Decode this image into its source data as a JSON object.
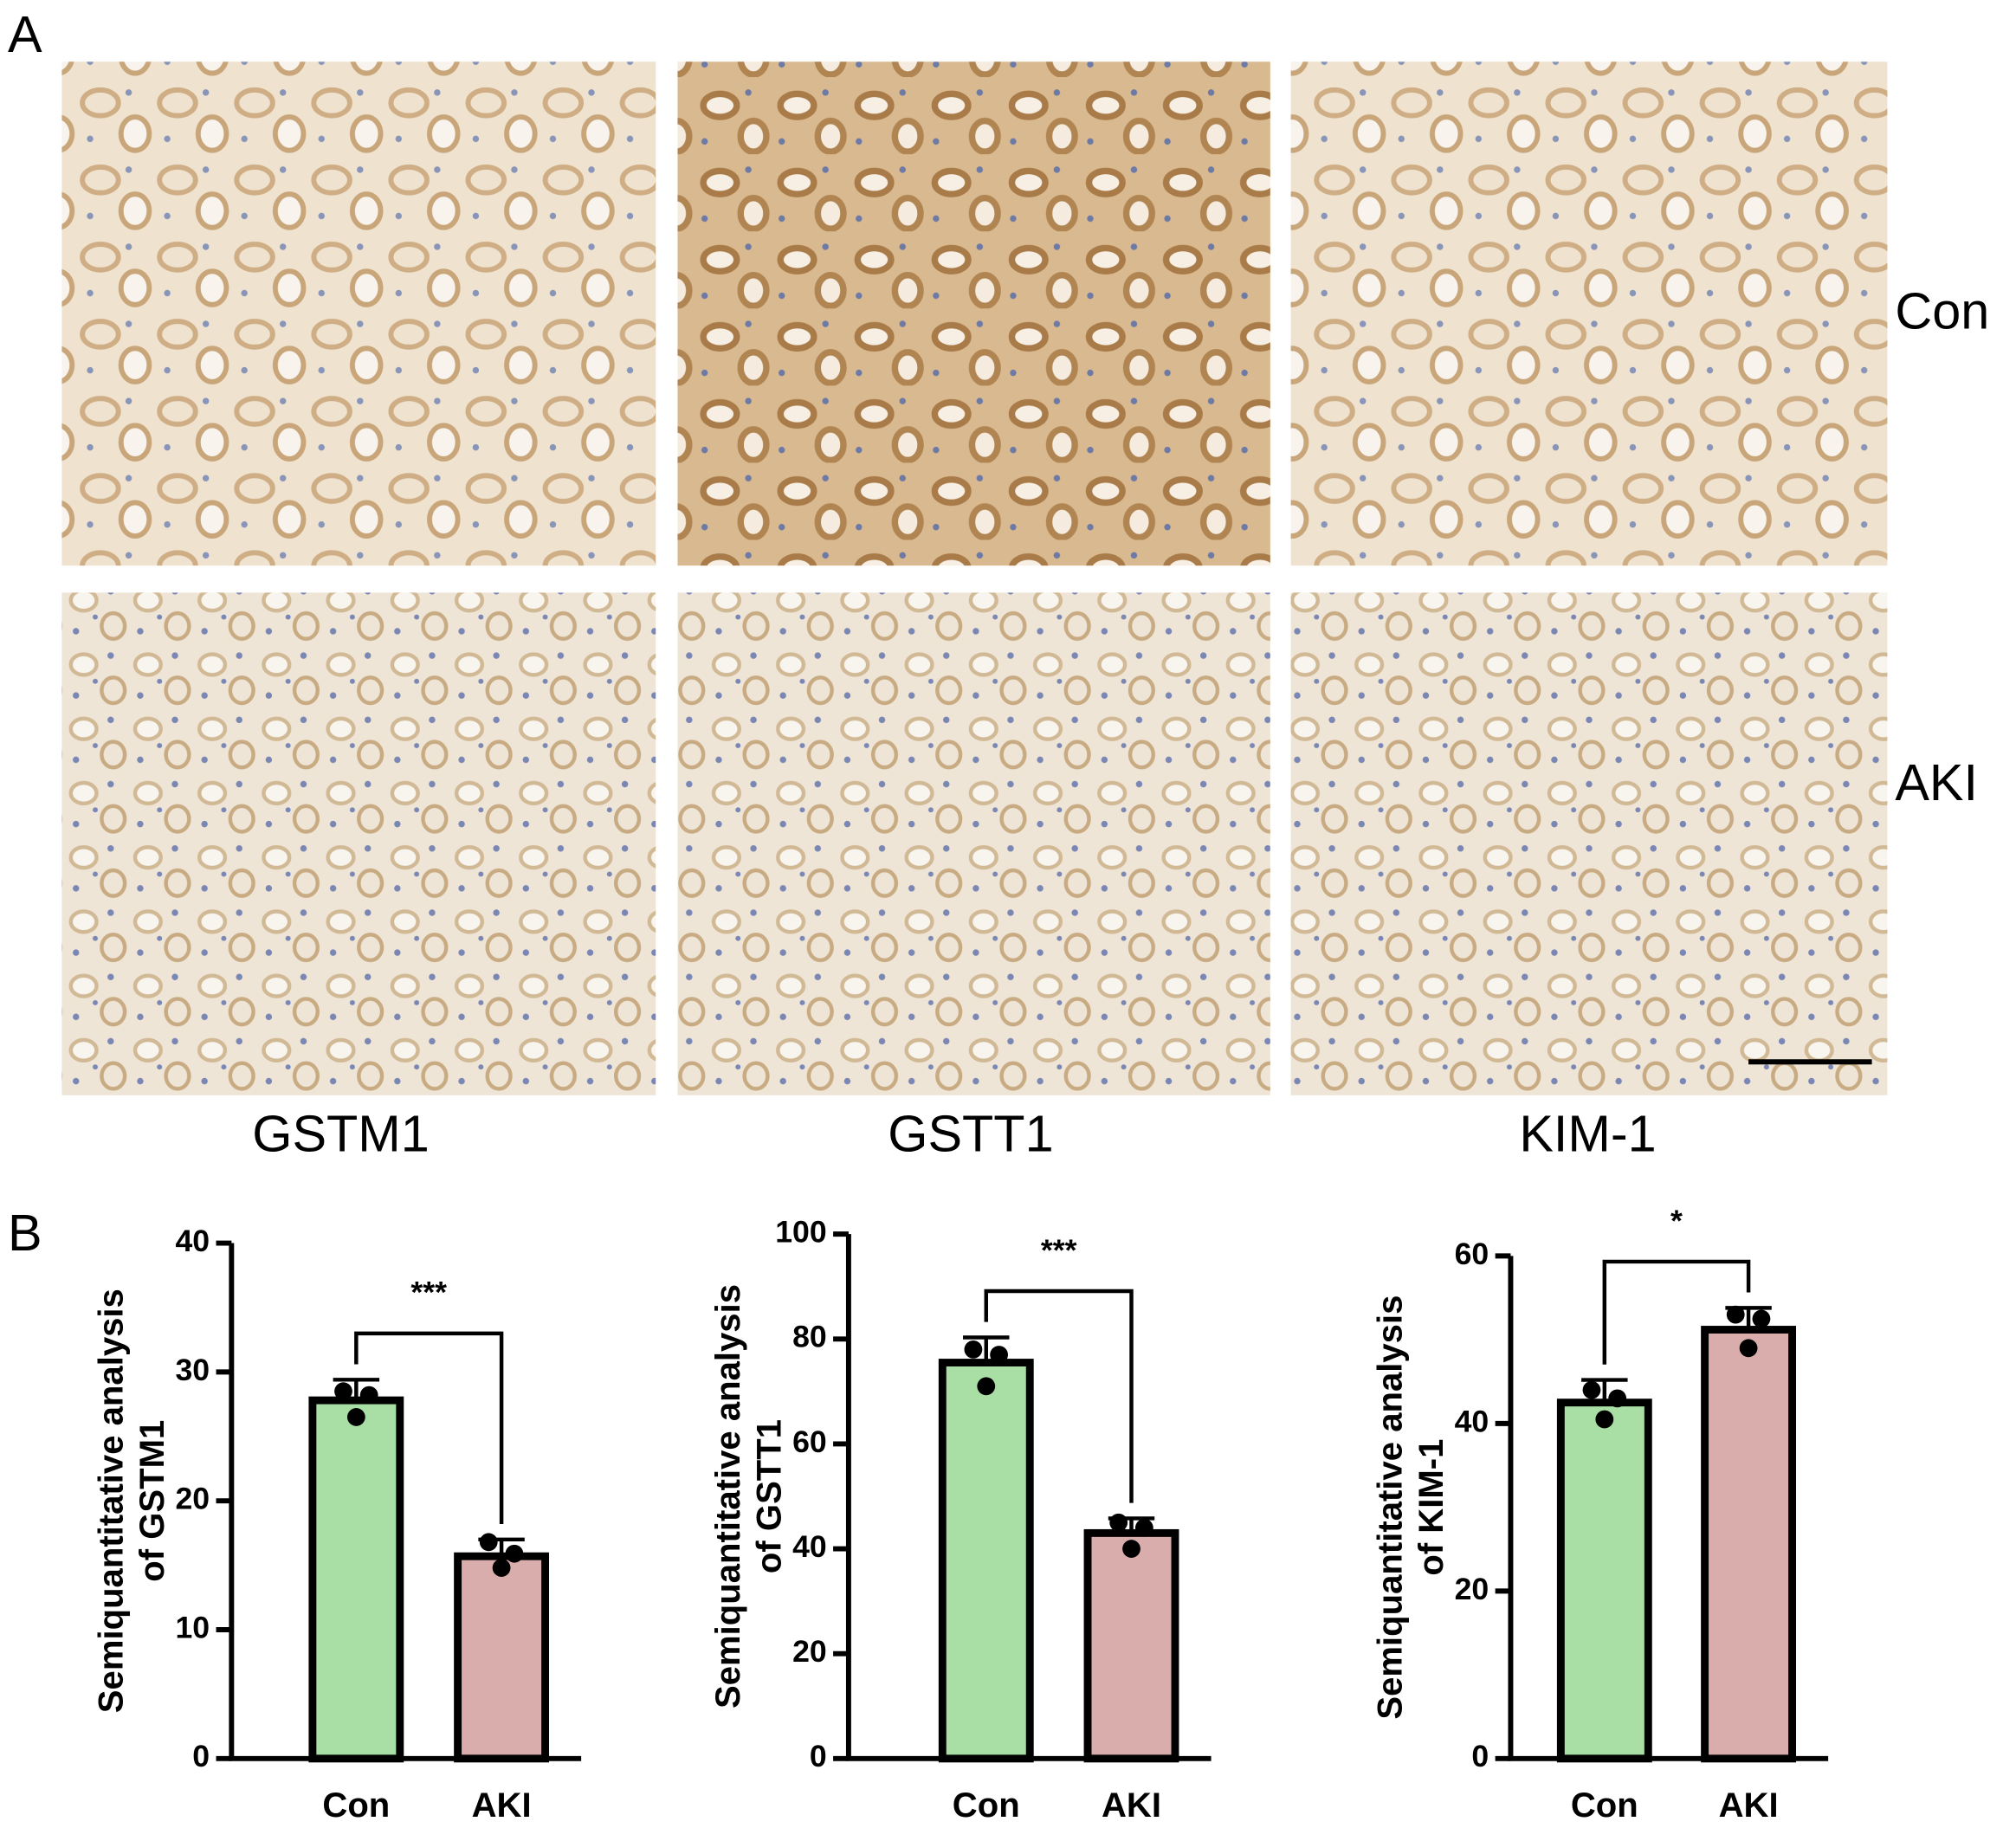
{
  "panel_a": {
    "label": "A",
    "rows": [
      "Con",
      "AKI"
    ],
    "columns": [
      "GSTM1",
      "GSTT1",
      "KIM-1"
    ]
  },
  "panel_b": {
    "label": "B"
  },
  "chart_data": [
    {
      "type": "bar",
      "ylabel": [
        "Semiquantitative analysis",
        "of GSTM1"
      ],
      "categories": [
        "Con",
        "AKI"
      ],
      "values": [
        27.8,
        15.7
      ],
      "errors": [
        1.6,
        1.3
      ],
      "points": [
        [
          28.5,
          26.5,
          28.2
        ],
        [
          16.8,
          14.8,
          15.9
        ]
      ],
      "colors": [
        "#a9dfa5",
        "#d8adab"
      ],
      "annotation": "***",
      "ylim": [
        0,
        40
      ],
      "yticks": [
        0,
        10,
        20,
        30,
        40
      ]
    },
    {
      "type": "bar",
      "ylabel": [
        "Semiquantitative analysis",
        "of GSTT1"
      ],
      "categories": [
        "Con",
        "AKI"
      ],
      "values": [
        75.5,
        43
      ],
      "errors": [
        4.8,
        2.8
      ],
      "points": [
        [
          78,
          71,
          77
        ],
        [
          45,
          40,
          44
        ]
      ],
      "colors": [
        "#a9dfa5",
        "#d8adab"
      ],
      "annotation": "***",
      "ylim": [
        0,
        100
      ],
      "yticks": [
        0,
        20,
        40,
        60,
        80,
        100
      ]
    },
    {
      "type": "bar",
      "ylabel": [
        "Semiquantitative analysis",
        "of KIM-1"
      ],
      "categories": [
        "Con",
        "AKI"
      ],
      "values": [
        42.5,
        51.2
      ],
      "errors": [
        2.7,
        2.6
      ],
      "points": [
        [
          44,
          40.5,
          43
        ],
        [
          53,
          49,
          52.5
        ]
      ],
      "colors": [
        "#a9dfa5",
        "#d8adab"
      ],
      "annotation": "*",
      "ylim": [
        0,
        60
      ],
      "yticks": [
        0,
        20,
        40,
        60
      ]
    }
  ]
}
